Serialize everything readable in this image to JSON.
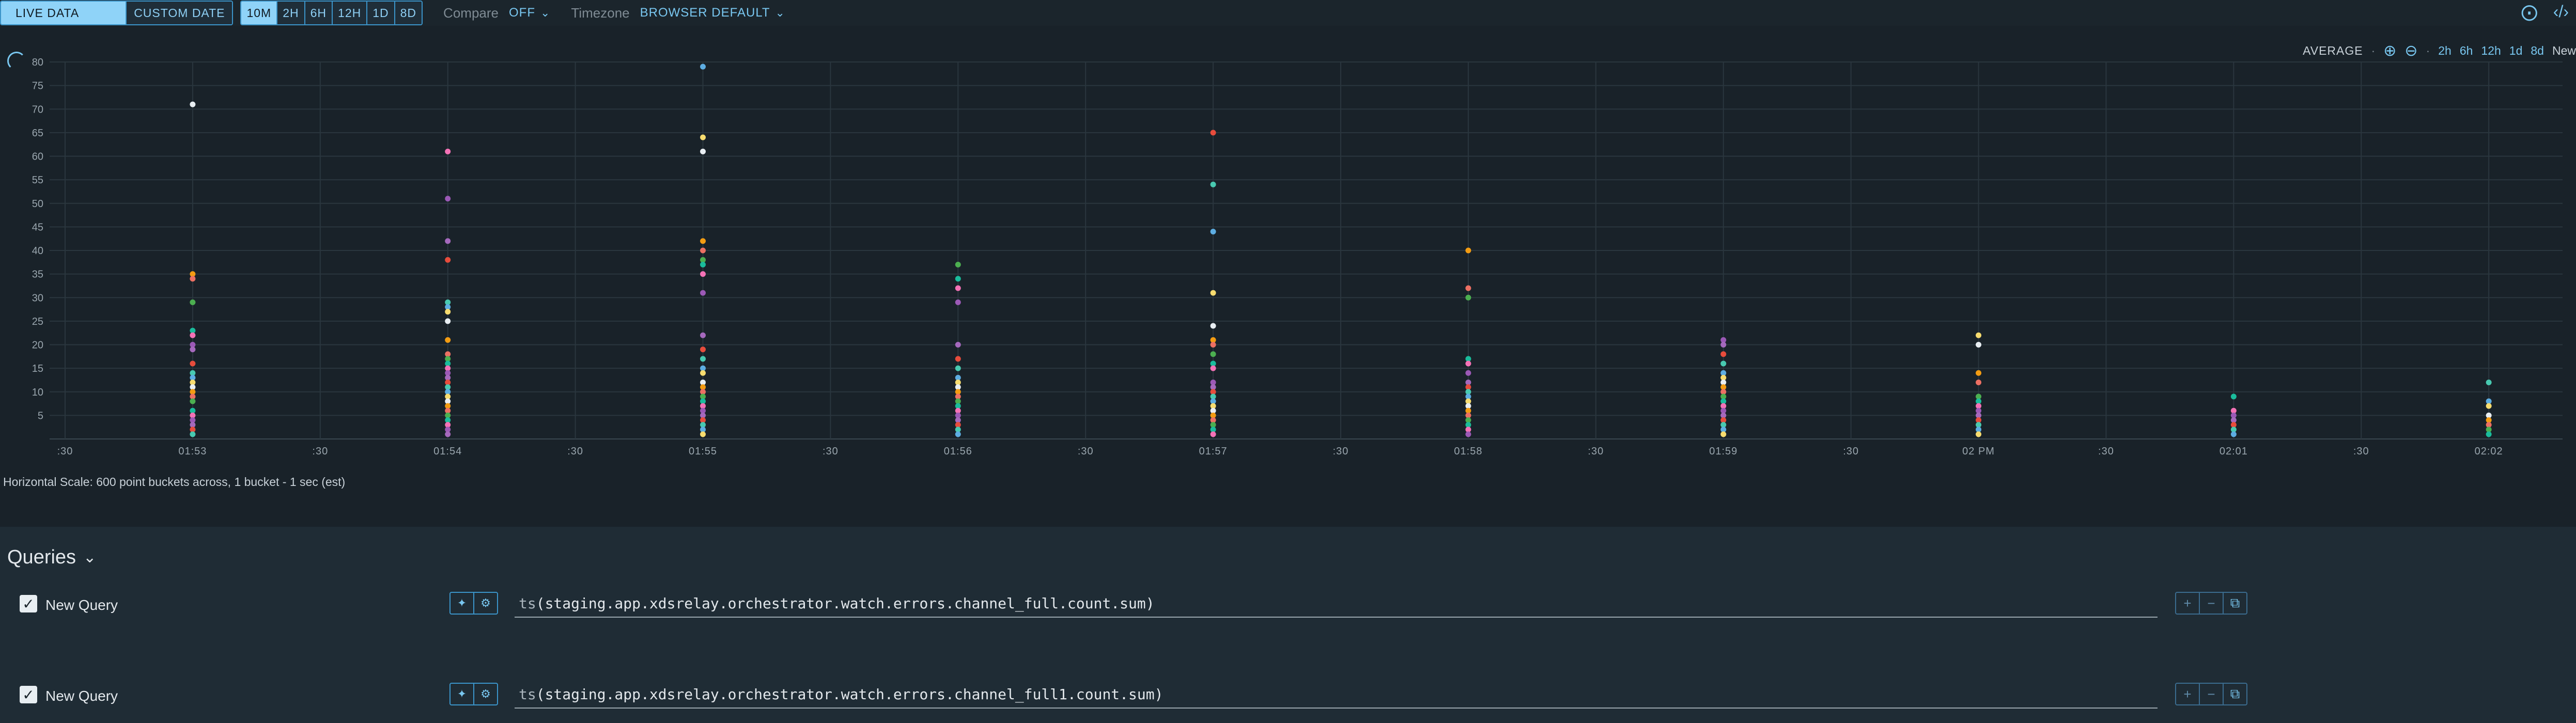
{
  "toolbar": {
    "live_data": "LIVE DATA",
    "custom_date": "CUSTOM DATE",
    "ranges": [
      "10M",
      "2H",
      "6H",
      "12H",
      "1D",
      "8D"
    ],
    "active_range": "10M",
    "compare_label": "Compare",
    "compare_value": "OFF",
    "timezone_label": "Timezone",
    "timezone_value": "BROWSER DEFAULT",
    "icons": [
      "share-icon",
      "code-icon"
    ]
  },
  "chart_controls": {
    "aggregation": "AVERAGE",
    "zoom_icons": [
      "zoom-in-icon",
      "zoom-out-icon"
    ],
    "ranges": [
      "2h",
      "6h",
      "12h",
      "1d",
      "8d"
    ],
    "new_label": "New"
  },
  "chart_data": {
    "type": "scatter",
    "title": "",
    "xlabel": "",
    "ylabel": "",
    "ylim": [
      0,
      80
    ],
    "yticks": [
      5,
      10,
      15,
      20,
      25,
      30,
      35,
      40,
      45,
      50,
      55,
      60,
      65,
      70,
      75,
      80
    ],
    "xticks": [
      ":30",
      "01:53",
      ":30",
      "01:54",
      ":30",
      "01:55",
      ":30",
      "01:56",
      ":30",
      "01:57",
      ":30",
      "01:58",
      ":30",
      "01:59",
      ":30",
      "02 PM",
      ":30",
      "02:01",
      ":30",
      "02:02"
    ],
    "grid": true,
    "legend": "none",
    "palette": [
      "#e8eef2",
      "#f472b6",
      "#5dade2",
      "#4caf50",
      "#e74c3c",
      "#f39c12",
      "#9b59b6",
      "#f7dc6f",
      "#1abc9c",
      "#48c9b0",
      "#ec7063",
      "#a569bd"
    ],
    "columns": [
      {
        "x": "01:53",
        "values": [
          71,
          35,
          34,
          29,
          23,
          22,
          20,
          19,
          16,
          14,
          13,
          12,
          11,
          10,
          9,
          8,
          6,
          5,
          4,
          3,
          2,
          1
        ]
      },
      {
        "x": "01:54",
        "values": [
          61,
          51,
          42,
          38,
          29,
          28,
          27,
          25,
          21,
          18,
          17,
          16,
          15,
          14,
          13,
          12,
          11,
          10,
          9,
          8,
          7,
          6,
          5,
          4,
          3,
          2,
          1
        ]
      },
      {
        "x": "01:55",
        "values": [
          79,
          64,
          61,
          42,
          40,
          38,
          37,
          35,
          31,
          22,
          19,
          17,
          15,
          14,
          12,
          11,
          10,
          9,
          8,
          7,
          6,
          5,
          4,
          3,
          2,
          1
        ]
      },
      {
        "x": "01:56",
        "values": [
          37,
          34,
          32,
          29,
          20,
          17,
          15,
          13,
          12,
          11,
          10,
          9,
          8,
          7,
          6,
          5,
          4,
          3,
          2,
          1
        ]
      },
      {
        "x": "01:57",
        "values": [
          65,
          54,
          44,
          31,
          24,
          21,
          20,
          18,
          16,
          15,
          12,
          11,
          10,
          9,
          8,
          7,
          6,
          5,
          4,
          3,
          2,
          1
        ]
      },
      {
        "x": "01:58",
        "values": [
          40,
          32,
          30,
          17,
          16,
          14,
          12,
          11,
          10,
          9,
          8,
          7,
          6,
          5,
          4,
          3,
          2,
          1
        ]
      },
      {
        "x": "01:59",
        "values": [
          21,
          20,
          18,
          16,
          14,
          13,
          12,
          11,
          10,
          9,
          8,
          7,
          6,
          5,
          4,
          3,
          2,
          1
        ]
      },
      {
        "x": "02 PM",
        "values": [
          22,
          20,
          14,
          12,
          9,
          8,
          7,
          6,
          5,
          4,
          3,
          2,
          1
        ]
      },
      {
        "x": "02:01",
        "values": [
          9,
          6,
          5,
          4,
          3,
          2,
          1
        ]
      },
      {
        "x": "02:02",
        "values": [
          12,
          8,
          7,
          5,
          4,
          3,
          2,
          1
        ]
      }
    ]
  },
  "scale_note": "Horizontal Scale: 600 point buckets across, 1 bucket - 1 sec (est)",
  "queries": {
    "title": "Queries",
    "items": [
      {
        "name": "New Query",
        "checked": true,
        "fn": "ts",
        "expression": "(staging.app.xdsrelay.orchestrator.watch.errors.channel_full.count.sum)"
      },
      {
        "name": "New Query",
        "checked": true,
        "fn": "ts",
        "expression": "(staging.app.xdsrelay.orchestrator.watch.errors.channel_full1.count.sum)"
      }
    ]
  }
}
